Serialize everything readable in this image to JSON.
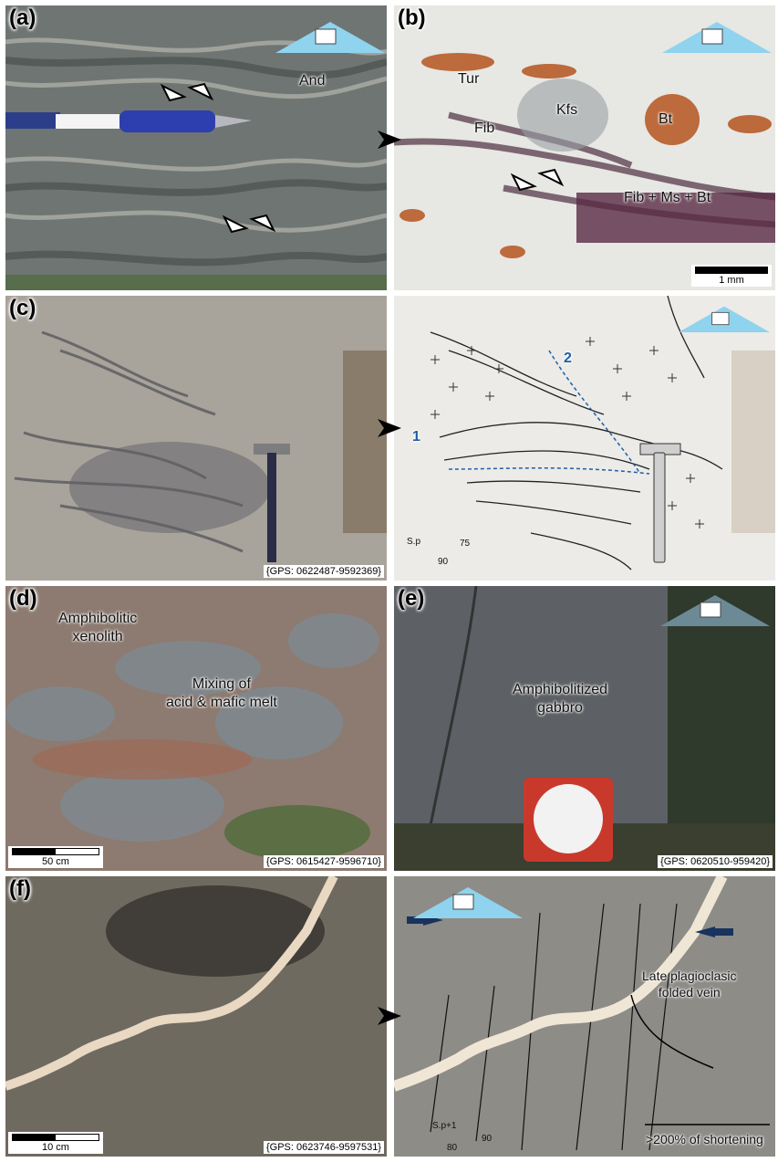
{
  "panels": {
    "a": {
      "label": "(a)",
      "mineral": "And"
    },
    "b": {
      "label": "(b)",
      "minerals": [
        "Tur",
        "Kfs",
        "Bt",
        "Fib",
        "Fib + Ms + Bt"
      ],
      "scale": "1 mm"
    },
    "c": {
      "label": "(c)",
      "gps": "{GPS: 0622487-9592369}",
      "sketch": {
        "label1": "1",
        "label2": "2",
        "sp": "S.p",
        "dip": "75",
        "strike": "90"
      }
    },
    "d": {
      "label": "(d)",
      "tag1": "Amphibolitic\nxenolith",
      "tag2": "Mixing of\nacid & mafic melt",
      "scale": "50 cm",
      "gps": "{GPS: 0615427-9596710}"
    },
    "e": {
      "label": "(e)",
      "tag": "Amphibolitized\ngabbro",
      "gps": "{GPS: 0620510-959420}"
    },
    "f": {
      "label": "(f)",
      "scale": "10 cm",
      "gps": "{GPS: 0623746-9597531}",
      "sketch": {
        "vein": "Late plagioclasic\nfolded vein",
        "shortening": ">200% of shortening",
        "sp": "S.p+1",
        "strike": "90",
        "dip": "80"
      }
    }
  },
  "colors": {
    "arrow": "#000000",
    "blue_arrow": "#1f5fa8",
    "orient": "#8fd3ee",
    "vein": "#f0e6d6"
  }
}
